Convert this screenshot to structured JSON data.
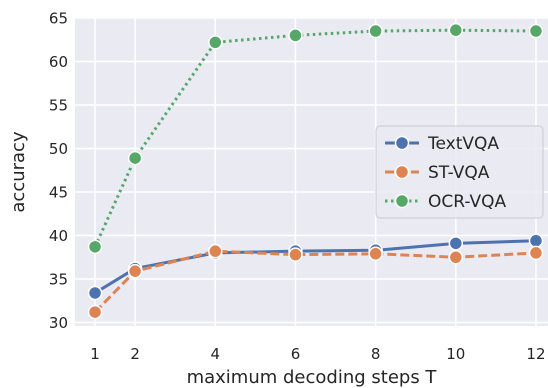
{
  "chart_data": {
    "type": "line",
    "xlabel": "maximum decoding steps T",
    "ylabel": "accuracy",
    "x": [
      1,
      2,
      4,
      6,
      8,
      10,
      12
    ],
    "xticks": [
      1,
      2,
      4,
      6,
      8,
      10,
      12
    ],
    "yticks": [
      30,
      35,
      40,
      45,
      50,
      55,
      60,
      65
    ],
    "xlim": [
      0.5,
      12.3
    ],
    "ylim": [
      29.6,
      65
    ],
    "grid": true,
    "legend_position": "right",
    "background_color": "#eaeaf2",
    "series": [
      {
        "name": "TextVQA",
        "color": "#4c72b0",
        "linestyle": "solid",
        "values": [
          33.4,
          36.2,
          38.0,
          38.2,
          38.3,
          39.1,
          39.4
        ]
      },
      {
        "name": "ST-VQA",
        "color": "#dd8452",
        "linestyle": "dashed",
        "values": [
          31.2,
          35.9,
          38.2,
          37.8,
          37.9,
          37.5,
          38.0
        ]
      },
      {
        "name": "OCR-VQA",
        "color": "#55a868",
        "linestyle": "dotted",
        "values": [
          38.7,
          48.9,
          62.2,
          63.0,
          63.5,
          63.6,
          63.5
        ]
      }
    ]
  }
}
